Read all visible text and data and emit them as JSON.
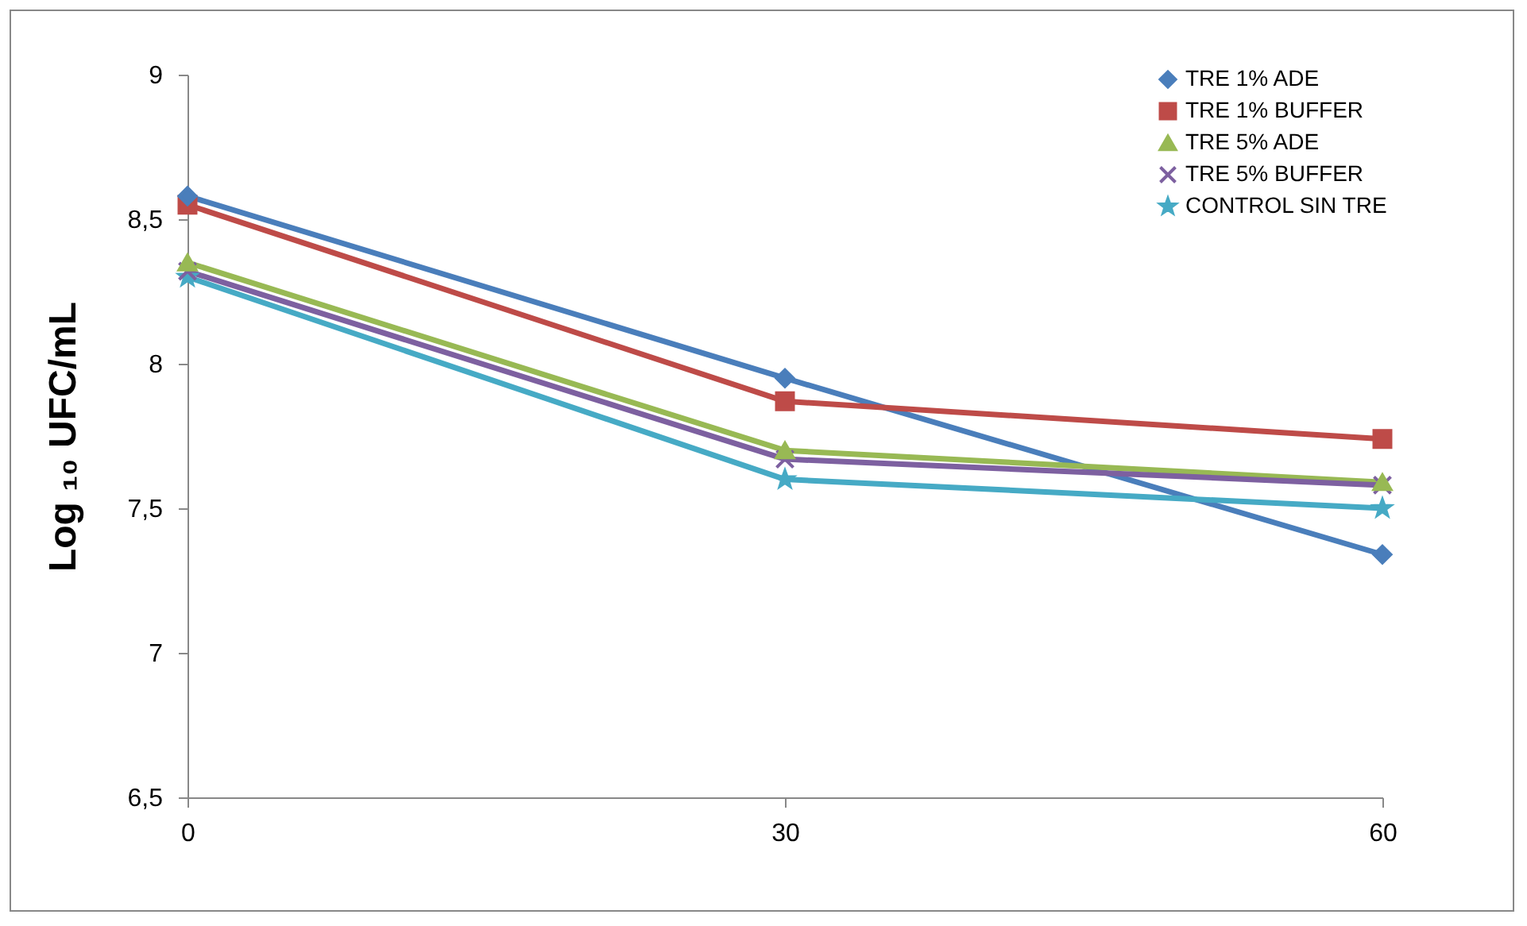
{
  "chart_data": {
    "type": "line",
    "ylabel": "Log ₁₀ UFC/mL",
    "x": [
      0,
      30,
      60
    ],
    "xlim": [
      0,
      60
    ],
    "xticks": [
      0,
      30,
      60
    ],
    "ylim": [
      6.5,
      9
    ],
    "yticks": [
      {
        "value": 6.5,
        "label": "6,5"
      },
      {
        "value": 7,
        "label": "7"
      },
      {
        "value": 7.5,
        "label": "7,5"
      },
      {
        "value": 8,
        "label": "8"
      },
      {
        "value": 8.5,
        "label": "8,5"
      },
      {
        "value": 9,
        "label": "9"
      }
    ],
    "grid": false,
    "legend": "top right",
    "series": [
      {
        "name": "TRE 1% ADE",
        "color": "#4a7ebb",
        "marker": "diamond",
        "values": [
          8.58,
          7.95,
          7.34
        ]
      },
      {
        "name": "TRE 1% BUFFER",
        "color": "#be4b48",
        "marker": "square",
        "values": [
          8.55,
          7.87,
          7.74
        ]
      },
      {
        "name": "TRE 5% ADE",
        "color": "#98b954",
        "marker": "triangle",
        "values": [
          8.35,
          7.7,
          7.59
        ]
      },
      {
        "name": "TRE 5% BUFFER",
        "color": "#7d60a0",
        "marker": "cross",
        "values": [
          8.32,
          7.67,
          7.58
        ]
      },
      {
        "name": "CONTROL SIN TRE",
        "color": "#46aac5",
        "marker": "star",
        "values": [
          8.3,
          7.6,
          7.5
        ]
      }
    ]
  }
}
